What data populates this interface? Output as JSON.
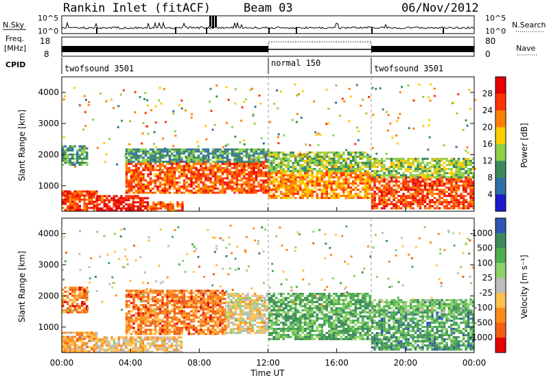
{
  "header": {
    "station": "Rankin Inlet (fitACF)",
    "beam": "Beam 03",
    "date": "06/Nov/2012"
  },
  "strips": {
    "nsky_label": "N.Sky",
    "nsearch_label": "N.Search",
    "nsky_ticks": [
      "10^5",
      "10^0"
    ],
    "freq_label_1": "Freq.",
    "freq_label_2": "[MHz]",
    "freq_ticks": [
      "18",
      "8"
    ],
    "nave_label": "Nave",
    "nave_ticks": [
      "80",
      "0"
    ],
    "cpid_label": "CPID",
    "cpid_segments": [
      {
        "label": "twofsound 3501",
        "start": 0,
        "end": 12
      },
      {
        "label": "normal 150",
        "start": 12,
        "end": 18
      },
      {
        "label": "twofsound 3501",
        "start": 18,
        "end": 24
      }
    ]
  },
  "chart_data": [
    {
      "type": "heatmap",
      "name": "power",
      "ylabel": "Slant Range [km]",
      "xlabel": "Time UT",
      "x_ticks": [
        "00:00",
        "04:00",
        "08:00",
        "12:00",
        "16:00",
        "20:00",
        "00:00"
      ],
      "x_range_hours": [
        0,
        24
      ],
      "ylim": [
        180,
        4500
      ],
      "y_ticks": [
        1000,
        2000,
        3000,
        4000
      ],
      "colorbar_label": "Power [dB]",
      "colorbar_ticks": [
        "28",
        "24",
        "20",
        "16",
        "12",
        "8",
        "4"
      ],
      "colorbar_colors": [
        "#e60000",
        "#ff3300",
        "#ff8000",
        "#ffcc00",
        "#8fcf4a",
        "#3c8a5c",
        "#2f6fa8",
        "#1a1acc"
      ],
      "regions": [
        {
          "t0": 0.0,
          "t1": 2.0,
          "r0": 200,
          "r1": 850,
          "level": 0.85
        },
        {
          "t0": 0.0,
          "t1": 1.5,
          "r0": 1700,
          "r1": 2300,
          "level": 0.3
        },
        {
          "t0": 2.0,
          "t1": 5.0,
          "r0": 200,
          "r1": 700,
          "level": 0.95
        },
        {
          "t0": 5.0,
          "t1": 7.0,
          "r0": 200,
          "r1": 500,
          "level": 0.8
        },
        {
          "t0": 3.7,
          "t1": 12.0,
          "r0": 800,
          "r1": 1800,
          "level": 0.8
        },
        {
          "t0": 3.7,
          "t1": 12.0,
          "r0": 1800,
          "r1": 2200,
          "level": 0.3
        },
        {
          "t0": 12.0,
          "t1": 18.0,
          "r0": 600,
          "r1": 1500,
          "level": 0.7
        },
        {
          "t0": 12.0,
          "t1": 18.0,
          "r0": 1500,
          "r1": 2100,
          "level": 0.4
        },
        {
          "t0": 18.0,
          "t1": 24.0,
          "r0": 300,
          "r1": 1300,
          "level": 0.85
        },
        {
          "t0": 18.0,
          "t1": 24.0,
          "r0": 1300,
          "r1": 1900,
          "level": 0.45
        }
      ]
    },
    {
      "type": "heatmap",
      "name": "velocity",
      "ylabel": "Slant Range [km]",
      "xlabel": "Time UT",
      "x_ticks": [
        "00:00",
        "04:00",
        "08:00",
        "12:00",
        "16:00",
        "20:00",
        "00:00"
      ],
      "x_range_hours": [
        0,
        24
      ],
      "ylim": [
        180,
        4500
      ],
      "y_ticks": [
        1000,
        2000,
        3000,
        4000
      ],
      "colorbar_label": "Velocity [m s⁻¹]",
      "colorbar_ticks": [
        "1000",
        "500",
        "100",
        "25",
        "-25",
        "-100",
        "-500",
        "-1000"
      ],
      "colorbar_colors": [
        "#2d55b5",
        "#3c8a5c",
        "#4caf50",
        "#8fd16a",
        "#bdbdbd",
        "#ffc04d",
        "#ff8c1a",
        "#f06010",
        "#e60000"
      ],
      "regions": [
        {
          "t0": 0.0,
          "t1": 2.0,
          "r0": 200,
          "r1": 850,
          "level": 0.3
        },
        {
          "t0": 0.0,
          "t1": 1.5,
          "r0": 1500,
          "r1": 2300,
          "level": 0.2
        },
        {
          "t0": 2.0,
          "t1": 7.0,
          "r0": 200,
          "r1": 700,
          "level": 0.4
        },
        {
          "t0": 3.7,
          "t1": 9.5,
          "r0": 800,
          "r1": 2200,
          "level": 0.2
        },
        {
          "t0": 9.5,
          "t1": 12.0,
          "r0": 800,
          "r1": 2100,
          "level": 0.45
        },
        {
          "t0": 12.0,
          "t1": 18.0,
          "r0": 600,
          "r1": 2100,
          "level": 0.75
        },
        {
          "t0": 18.0,
          "t1": 24.0,
          "r0": 300,
          "r1": 1500,
          "level": 0.8
        },
        {
          "t0": 18.0,
          "t1": 24.0,
          "r0": 1500,
          "r1": 1900,
          "level": 0.7
        }
      ]
    }
  ]
}
